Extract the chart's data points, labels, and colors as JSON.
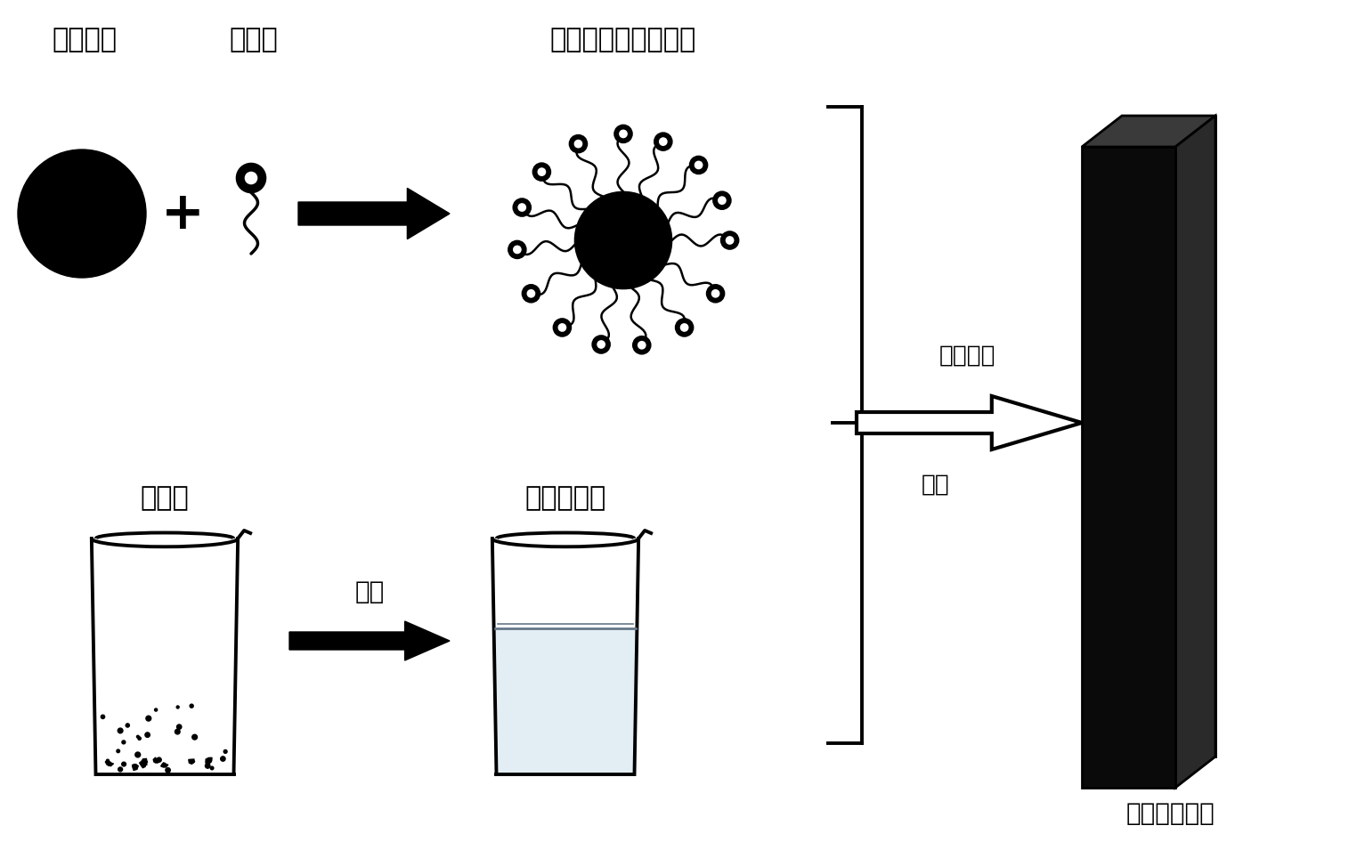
{
  "bg_color": "#ffffff",
  "text_color": "#000000",
  "labels": {
    "nanoparticle": "纳米粒子",
    "ionic_liquid": "离子液",
    "nano_in_ionic": "纳米粒子溶于离子液",
    "polymer": "高分子",
    "polymer_solution": "高分子溶液",
    "dissolve": "溶解",
    "ultrasonic": "超声分散",
    "spin_coat": "旋涂",
    "composite_film": "复合材料薄膜"
  },
  "figsize": [
    15.33,
    9.55
  ],
  "dpi": 100
}
